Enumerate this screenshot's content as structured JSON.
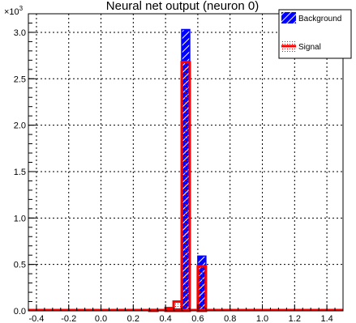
{
  "chart_data": {
    "type": "bar",
    "title": "Neural net output (neuron 0)",
    "xlabel": "",
    "ylabel": "",
    "y_exponent_label": "×10",
    "y_exponent_power": "3",
    "xlim": [
      -0.45,
      1.5
    ],
    "ylim": [
      0,
      3.2
    ],
    "grid": true,
    "legend_position": "top-right",
    "x_ticks": [
      -0.4,
      -0.2,
      0.0,
      0.2,
      0.4,
      0.6,
      0.8,
      1.0,
      1.2,
      1.4
    ],
    "x_tick_labels": [
      "-0.4",
      "-0.2",
      "0.0",
      "0.2",
      "0.4",
      "0.6",
      "0.8",
      "1.0",
      "1.2",
      "1.4"
    ],
    "y_ticks": [
      0.0,
      0.5,
      1.0,
      1.5,
      2.0,
      2.5,
      3.0
    ],
    "y_tick_labels": [
      "0.0",
      "0.5",
      "1.0",
      "1.5",
      "2.0",
      "2.5",
      "3.0"
    ],
    "bin_width": 0.05,
    "series": [
      {
        "name": "Background",
        "color": "#0000ff",
        "fill_pattern": "hatched",
        "bins": [
          {
            "x0": 0.45,
            "x1": 0.5,
            "value": 0.02
          },
          {
            "x0": 0.5,
            "x1": 0.55,
            "value": 3.03
          },
          {
            "x0": 0.55,
            "x1": 0.6,
            "value": 0.0
          },
          {
            "x0": 0.6,
            "x1": 0.65,
            "value": 0.59
          }
        ]
      },
      {
        "name": "Signal",
        "color": "#ff0000",
        "fill_pattern": "dotted",
        "bins": [
          {
            "x0": -0.45,
            "x1": 0.3,
            "value": 0.0
          },
          {
            "x0": 0.3,
            "x1": 0.35,
            "value": 0.01
          },
          {
            "x0": 0.35,
            "x1": 0.4,
            "value": 0.0
          },
          {
            "x0": 0.4,
            "x1": 0.45,
            "value": 0.03
          },
          {
            "x0": 0.45,
            "x1": 0.5,
            "value": 0.1
          },
          {
            "x0": 0.5,
            "x1": 0.55,
            "value": 2.68
          },
          {
            "x0": 0.55,
            "x1": 0.6,
            "value": 0.0
          },
          {
            "x0": 0.6,
            "x1": 0.65,
            "value": 0.48
          },
          {
            "x0": 0.65,
            "x1": 1.5,
            "value": 0.0
          }
        ]
      }
    ]
  }
}
